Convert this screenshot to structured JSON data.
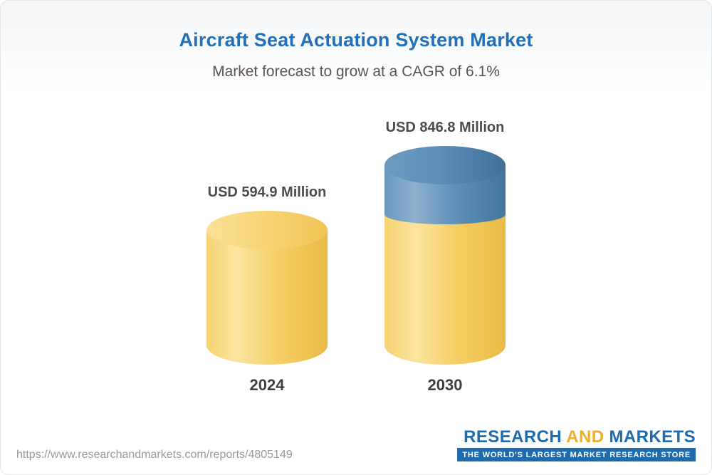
{
  "header": {
    "title": "Aircraft Seat Actuation System Market",
    "subtitle": "Market forecast to grow at a CAGR of 6.1%",
    "title_color": "#2170b8",
    "subtitle_color": "#5b5350"
  },
  "chart_data": {
    "type": "bar",
    "subtype": "3d-cylinder",
    "title": "Aircraft Seat Actuation System Market",
    "subtitle": "Market forecast to grow at a CAGR of 6.1%",
    "unit": "USD Million",
    "cagr_percent": 6.1,
    "categories": [
      "2024",
      "2030"
    ],
    "values": [
      594.9,
      846.8
    ],
    "legend": false,
    "grid": false,
    "colors": {
      "yellow": "#f5cf63",
      "blue": "#5d8fb8"
    },
    "bars": [
      {
        "category": "2024",
        "value": 594.9,
        "label": "USD 594.9 Million",
        "segments": [
          {
            "name": "market-2024",
            "value": 594.9,
            "color": "yellow"
          }
        ]
      },
      {
        "category": "2030",
        "value": 846.8,
        "label": "USD 846.8 Million",
        "segments": [
          {
            "name": "base-2024-level",
            "value": 594.9,
            "color": "yellow"
          },
          {
            "name": "growth-2024-2030",
            "value": 251.9,
            "color": "blue"
          }
        ]
      }
    ]
  },
  "footer": {
    "url": "https://www.researchandmarkets.com/reports/4805149",
    "logo": {
      "part1": "RESEARCH",
      "part2": "AND",
      "part3": "MARKETS",
      "tagline": "THE WORLD'S LARGEST MARKET RESEARCH STORE",
      "blue": "#1e6bad",
      "yellow": "#f0ad2c"
    }
  }
}
